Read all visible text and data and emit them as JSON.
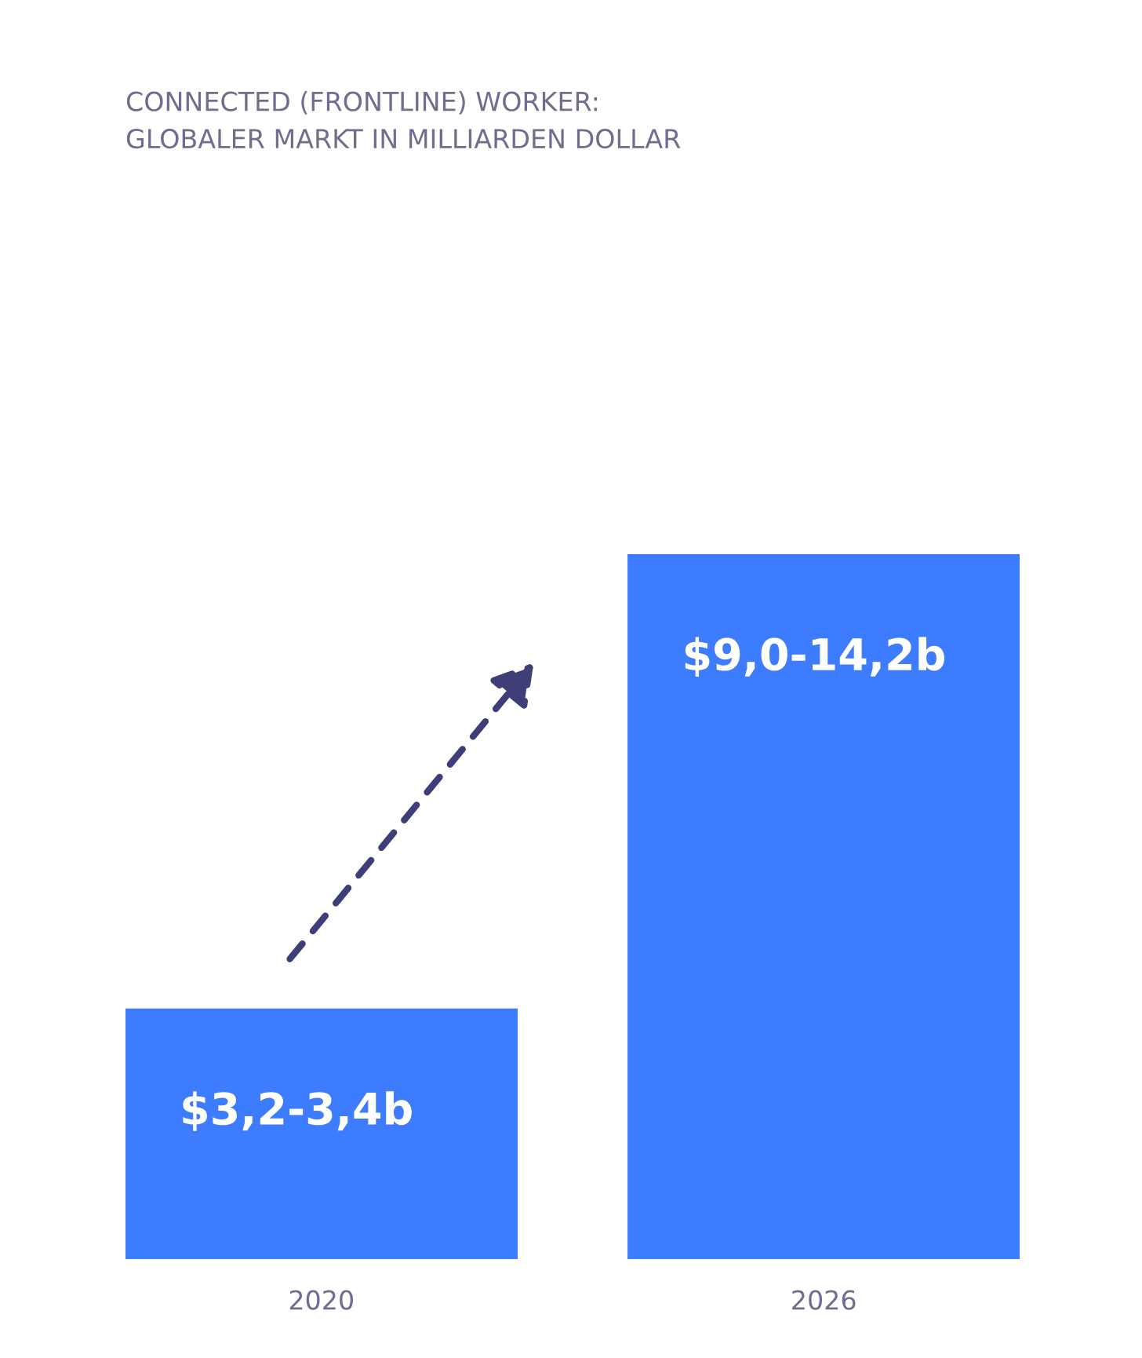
{
  "chart_data": {
    "type": "bar",
    "title": "CONNECTED (FRONTLINE) WORKER:\nGLOBALER MARKT IN MILLIARDEN DOLLAR",
    "categories": [
      "2020",
      "2026"
    ],
    "values": [
      3.2,
      9.0
    ],
    "ylim": [
      0,
      9.0
    ],
    "tick_labels": "x",
    "value_labels": [
      "$3,2-3,4b",
      "$9,0-14,2b"
    ],
    "color": "#3d7bff",
    "grid": false,
    "legend": false
  }
}
